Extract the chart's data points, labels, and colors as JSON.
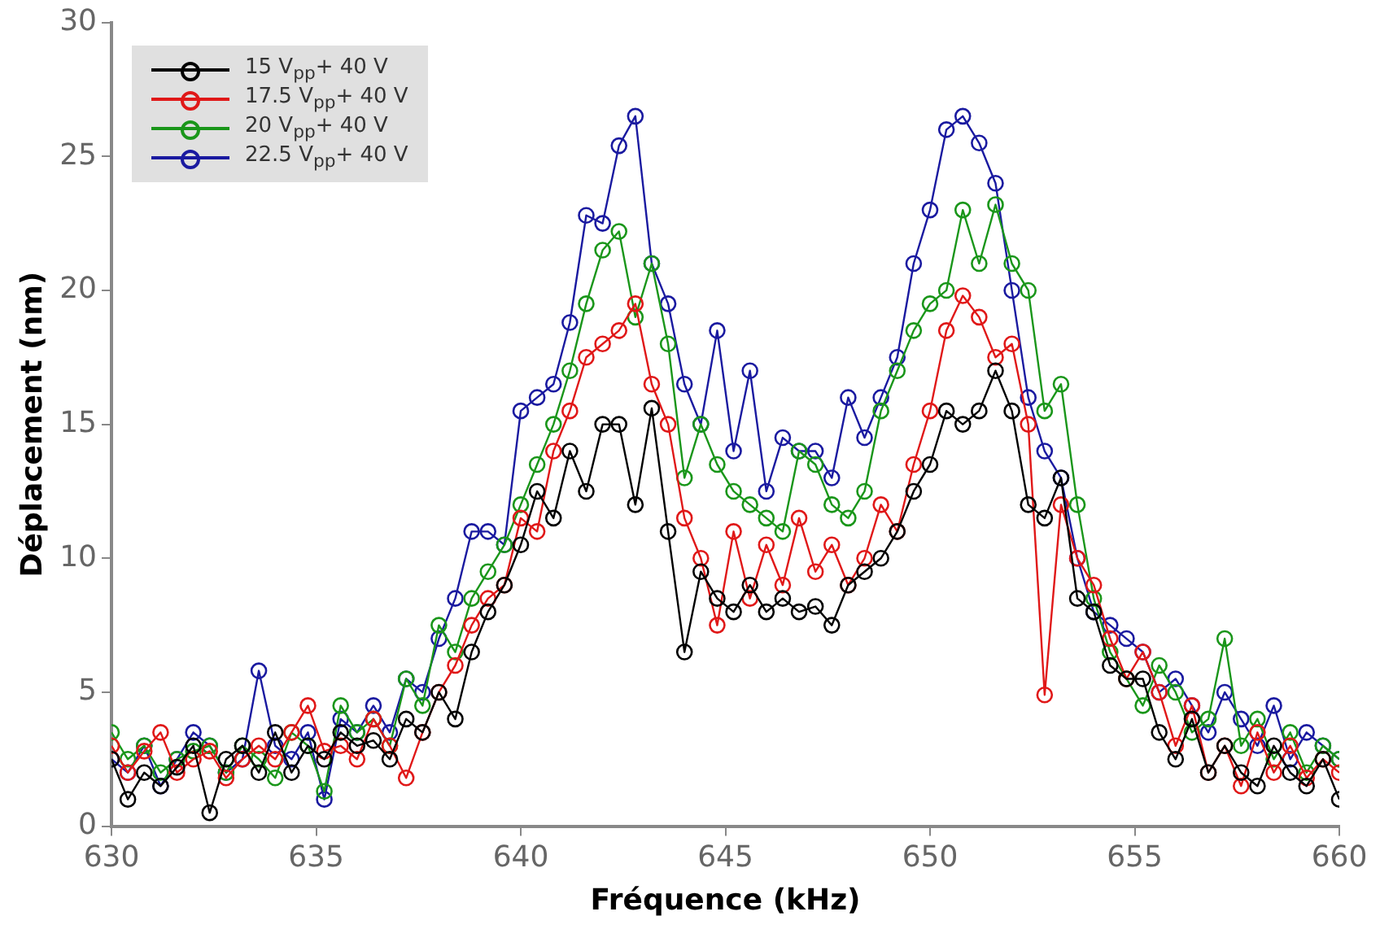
{
  "chart_data": {
    "type": "line",
    "xlabel": "Fréquence (kHz)",
    "ylabel": "Déplacement (nm)",
    "x": [
      630.0,
      630.4,
      630.8,
      631.2,
      631.6,
      632.0,
      632.4,
      632.8,
      633.2,
      633.6,
      634.0,
      634.4,
      634.8,
      635.2,
      635.6,
      636.0,
      636.4,
      636.8,
      637.2,
      637.6,
      638.0,
      638.4,
      638.8,
      639.2,
      639.6,
      640.0,
      640.4,
      640.8,
      641.2,
      641.6,
      642.0,
      642.4,
      642.8,
      643.2,
      643.6,
      644.0,
      644.4,
      644.8,
      645.2,
      645.6,
      646.0,
      646.4,
      646.8,
      647.2,
      647.6,
      648.0,
      648.4,
      648.8,
      649.2,
      649.6,
      650.0,
      650.4,
      650.8,
      651.2,
      651.6,
      652.0,
      652.4,
      652.8,
      653.2,
      653.6,
      654.0,
      654.4,
      654.8,
      655.2,
      655.6,
      656.0,
      656.4,
      656.8,
      657.2,
      657.6,
      658.0,
      658.4,
      658.8,
      659.2,
      659.6,
      660.0
    ],
    "series": [
      {
        "name": "15 V$_{pp}$+ 40 V",
        "color": "#000000",
        "values": [
          2.5,
          1.0,
          2.0,
          1.5,
          2.2,
          3.0,
          0.5,
          2.5,
          3.0,
          2.0,
          3.5,
          2.0,
          3.0,
          2.5,
          3.5,
          3.0,
          3.2,
          2.5,
          4.0,
          3.5,
          5.0,
          4.0,
          6.5,
          8.0,
          9.0,
          10.5,
          12.5,
          11.5,
          14.0,
          12.5,
          15.0,
          15.0,
          12.0,
          15.6,
          11.0,
          6.5,
          9.5,
          8.5,
          8.0,
          9.0,
          8.0,
          8.5,
          8.0,
          8.2,
          7.5,
          9.0,
          9.5,
          10.0,
          11.0,
          12.5,
          13.5,
          15.5,
          15.0,
          15.5,
          17.0,
          15.5,
          12.0,
          11.5,
          13.0,
          8.5,
          8.0,
          6.0,
          5.5,
          5.5,
          3.5,
          2.5,
          4.0,
          2.0,
          3.0,
          2.0,
          1.5,
          3.0,
          2.0,
          1.5,
          2.5,
          1.0
        ]
      },
      {
        "name": "17.5 V$_{pp}$+ 40 V",
        "color": "#e01818",
        "values": [
          3.0,
          2.0,
          2.8,
          3.5,
          2.0,
          2.5,
          2.8,
          1.8,
          2.5,
          3.0,
          2.5,
          3.5,
          4.5,
          2.8,
          3.0,
          2.5,
          4.0,
          3.0,
          1.8,
          3.5,
          5.0,
          6.0,
          7.5,
          8.5,
          9.0,
          11.5,
          11.0,
          14.0,
          15.5,
          17.5,
          18.0,
          18.5,
          19.5,
          16.5,
          15.0,
          11.5,
          10.0,
          7.5,
          11.0,
          8.5,
          10.5,
          9.0,
          11.5,
          9.5,
          10.5,
          9.0,
          10.0,
          12.0,
          11.0,
          13.5,
          15.5,
          18.5,
          19.8,
          19.0,
          17.5,
          18.0,
          15.0,
          4.9,
          12.0,
          10.0,
          9.0,
          7.0,
          5.5,
          6.5,
          5.0,
          3.0,
          4.5,
          2.0,
          3.0,
          1.5,
          3.5,
          2.0,
          3.0,
          1.8,
          2.5,
          2.0
        ]
      },
      {
        "name": "20 V$_{pp}$+ 40 V",
        "color": "#1a961a",
        "values": [
          3.5,
          2.5,
          3.0,
          2.0,
          2.5,
          2.8,
          3.0,
          2.0,
          3.0,
          2.5,
          1.8,
          3.5,
          3.0,
          1.3,
          4.5,
          3.5,
          4.0,
          3.0,
          5.5,
          4.5,
          7.5,
          6.5,
          8.5,
          9.5,
          10.5,
          12.0,
          13.5,
          15.0,
          17.0,
          19.5,
          21.5,
          22.2,
          19.0,
          21.0,
          18.0,
          13.0,
          15.0,
          13.5,
          12.5,
          12.0,
          11.5,
          11.0,
          14.0,
          13.5,
          12.0,
          11.5,
          12.5,
          15.5,
          17.0,
          18.5,
          19.5,
          20.0,
          23.0,
          21.0,
          23.2,
          21.0,
          20.0,
          15.5,
          16.5,
          12.0,
          8.5,
          6.5,
          5.5,
          4.5,
          6.0,
          5.0,
          3.5,
          4.0,
          7.0,
          3.0,
          4.0,
          2.5,
          3.5,
          2.0,
          3.0,
          2.5
        ]
      },
      {
        "name": "22.5 V$_{pp}$+ 40 V",
        "color": "#1a1aa0",
        "values": [
          2.5,
          2.0,
          3.0,
          1.5,
          2.5,
          3.5,
          3.0,
          2.0,
          2.5,
          5.8,
          3.0,
          2.5,
          3.5,
          1.0,
          4.0,
          3.5,
          4.5,
          3.5,
          5.5,
          5.0,
          7.0,
          8.5,
          11.0,
          11.0,
          10.5,
          15.5,
          16.0,
          16.5,
          18.8,
          22.8,
          22.5,
          25.4,
          26.5,
          21.0,
          19.5,
          16.5,
          15.0,
          18.5,
          14.0,
          17.0,
          12.5,
          14.5,
          14.0,
          14.0,
          13.0,
          16.0,
          14.5,
          16.0,
          17.5,
          21.0,
          23.0,
          26.0,
          26.5,
          25.5,
          24.0,
          20.0,
          16.0,
          14.0,
          13.0,
          10.0,
          8.0,
          7.5,
          7.0,
          6.5,
          5.0,
          5.5,
          4.5,
          3.5,
          5.0,
          4.0,
          3.0,
          4.5,
          2.5,
          3.5,
          3.0,
          2.5
        ]
      }
    ],
    "xlim": [
      630,
      660
    ],
    "xticks": [
      630,
      635,
      640,
      645,
      650,
      655,
      660
    ],
    "ylim": [
      0,
      30
    ],
    "yticks": [
      0,
      5,
      10,
      15,
      20,
      25,
      30
    ],
    "grid": false,
    "legend": "top left",
    "marker": "circle",
    "line_style": "solid"
  }
}
